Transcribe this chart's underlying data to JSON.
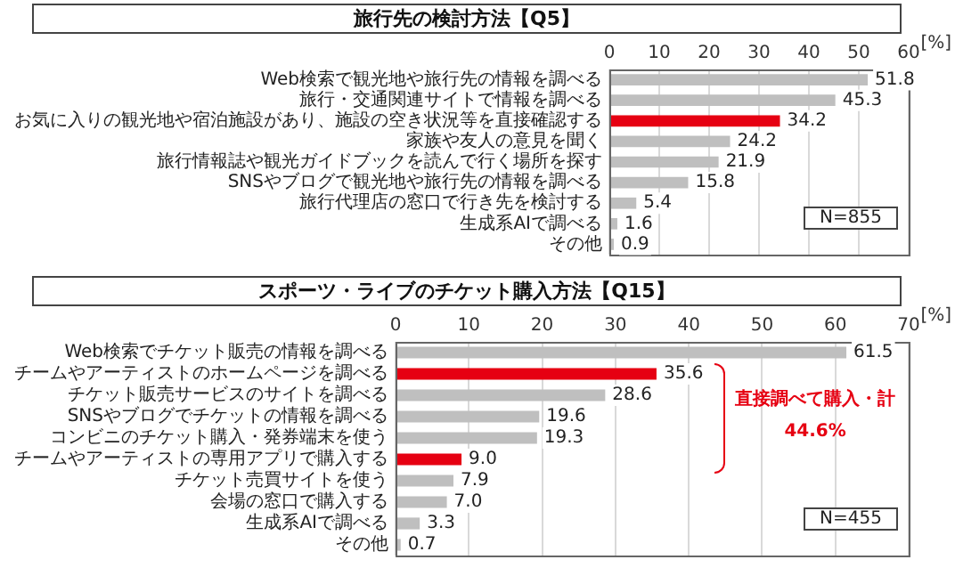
{
  "chart_data": [
    {
      "type": "bar",
      "orientation": "horizontal",
      "title": "旅行先の検討方法【Q5】",
      "xlabel": "[%]",
      "categories": [
        "Web検索で観光地や旅行先の情報を調べる",
        "旅行・交通関連サイトで情報を調べる",
        "お気に入りの観光地や宿泊施設があり、施設の空き状況等を直接確認する",
        "家族や友人の意見を聞く",
        "旅行情報誌や観光ガイドブックを読んで行く場所を探す",
        "SNSやブログで観光地や旅行先の情報を調べる",
        "旅行代理店の窓口で行き先を検討する",
        "生成系AIで調べる",
        "その他"
      ],
      "values": [
        51.8,
        45.3,
        34.2,
        24.2,
        21.9,
        15.8,
        5.4,
        1.6,
        0.9
      ],
      "value_labels": [
        "51.8",
        "45.3",
        "34.2",
        "24.2",
        "21.9",
        "15.8",
        "5.4",
        "1.6",
        "0.9"
      ],
      "colors": [
        "#bfbfbf",
        "#bfbfbf",
        "#e60012",
        "#bfbfbf",
        "#bfbfbf",
        "#bfbfbf",
        "#bfbfbf",
        "#bfbfbf",
        "#bfbfbf"
      ],
      "xlim": [
        0,
        60
      ],
      "xticks": [
        0,
        10,
        20,
        30,
        40,
        50,
        60
      ],
      "grid": "x",
      "annotations": [
        "N=855"
      ]
    },
    {
      "type": "bar",
      "orientation": "horizontal",
      "title": "スポーツ・ライブのチケット購入方法【Q15】",
      "xlabel": "[%]",
      "categories": [
        "Web検索でチケット販売の情報を調べる",
        "チームやアーティストのホームページを調べる",
        "チケット販売サービスのサイトを調べる",
        "SNSやブログでチケットの情報を調べる",
        "コンビニのチケット購入・発券端末を使う",
        "チームやアーティストの専用アプリで購入する",
        "チケット売買サイトを使う",
        "会場の窓口で購入する",
        "生成系AIで調べる",
        "その他"
      ],
      "values": [
        61.5,
        35.6,
        28.6,
        19.6,
        19.3,
        9.0,
        7.9,
        7.0,
        3.3,
        0.7
      ],
      "value_labels": [
        "61.5",
        "35.6",
        "28.6",
        "19.6",
        "19.3",
        "9.0",
        "7.9",
        "7.0",
        "3.3",
        "0.7"
      ],
      "colors": [
        "#bfbfbf",
        "#e60012",
        "#bfbfbf",
        "#bfbfbf",
        "#bfbfbf",
        "#e60012",
        "#bfbfbf",
        "#bfbfbf",
        "#bfbfbf",
        "#bfbfbf"
      ],
      "xlim": [
        0,
        70
      ],
      "xticks": [
        0,
        10,
        20,
        30,
        40,
        50,
        60,
        70
      ],
      "grid": "x",
      "annotations": [
        "直接調べて購入・計",
        "44.6%",
        "N=455"
      ]
    }
  ]
}
